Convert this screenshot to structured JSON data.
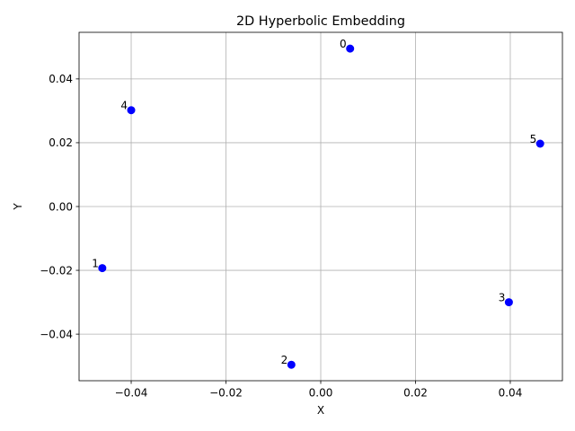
{
  "chart_data": {
    "type": "scatter",
    "title": "2D Hyperbolic Embedding",
    "xlabel": "X",
    "ylabel": "Y",
    "xlim": [
      -0.051,
      0.051
    ],
    "ylim": [
      -0.0546,
      0.0546
    ],
    "grid": true,
    "marker_color": "#0000ff",
    "x_ticks": [
      {
        "value": -0.04,
        "label": "−0.04"
      },
      {
        "value": -0.02,
        "label": "−0.02"
      },
      {
        "value": 0.0,
        "label": "0.00"
      },
      {
        "value": 0.02,
        "label": "0.02"
      },
      {
        "value": 0.04,
        "label": "0.04"
      }
    ],
    "y_ticks": [
      {
        "value": -0.04,
        "label": "−0.04"
      },
      {
        "value": -0.02,
        "label": "−0.02"
      },
      {
        "value": 0.0,
        "label": "0.00"
      },
      {
        "value": 0.02,
        "label": "0.02"
      },
      {
        "value": 0.04,
        "label": "0.04"
      }
    ],
    "points": [
      {
        "label": "0",
        "x": 0.0062,
        "y": 0.0495
      },
      {
        "label": "1",
        "x": -0.0461,
        "y": -0.0193
      },
      {
        "label": "2",
        "x": -0.0062,
        "y": -0.0496
      },
      {
        "label": "3",
        "x": 0.0397,
        "y": -0.03
      },
      {
        "label": "4",
        "x": -0.04,
        "y": 0.0302
      },
      {
        "label": "5",
        "x": 0.0463,
        "y": 0.0197
      }
    ]
  }
}
